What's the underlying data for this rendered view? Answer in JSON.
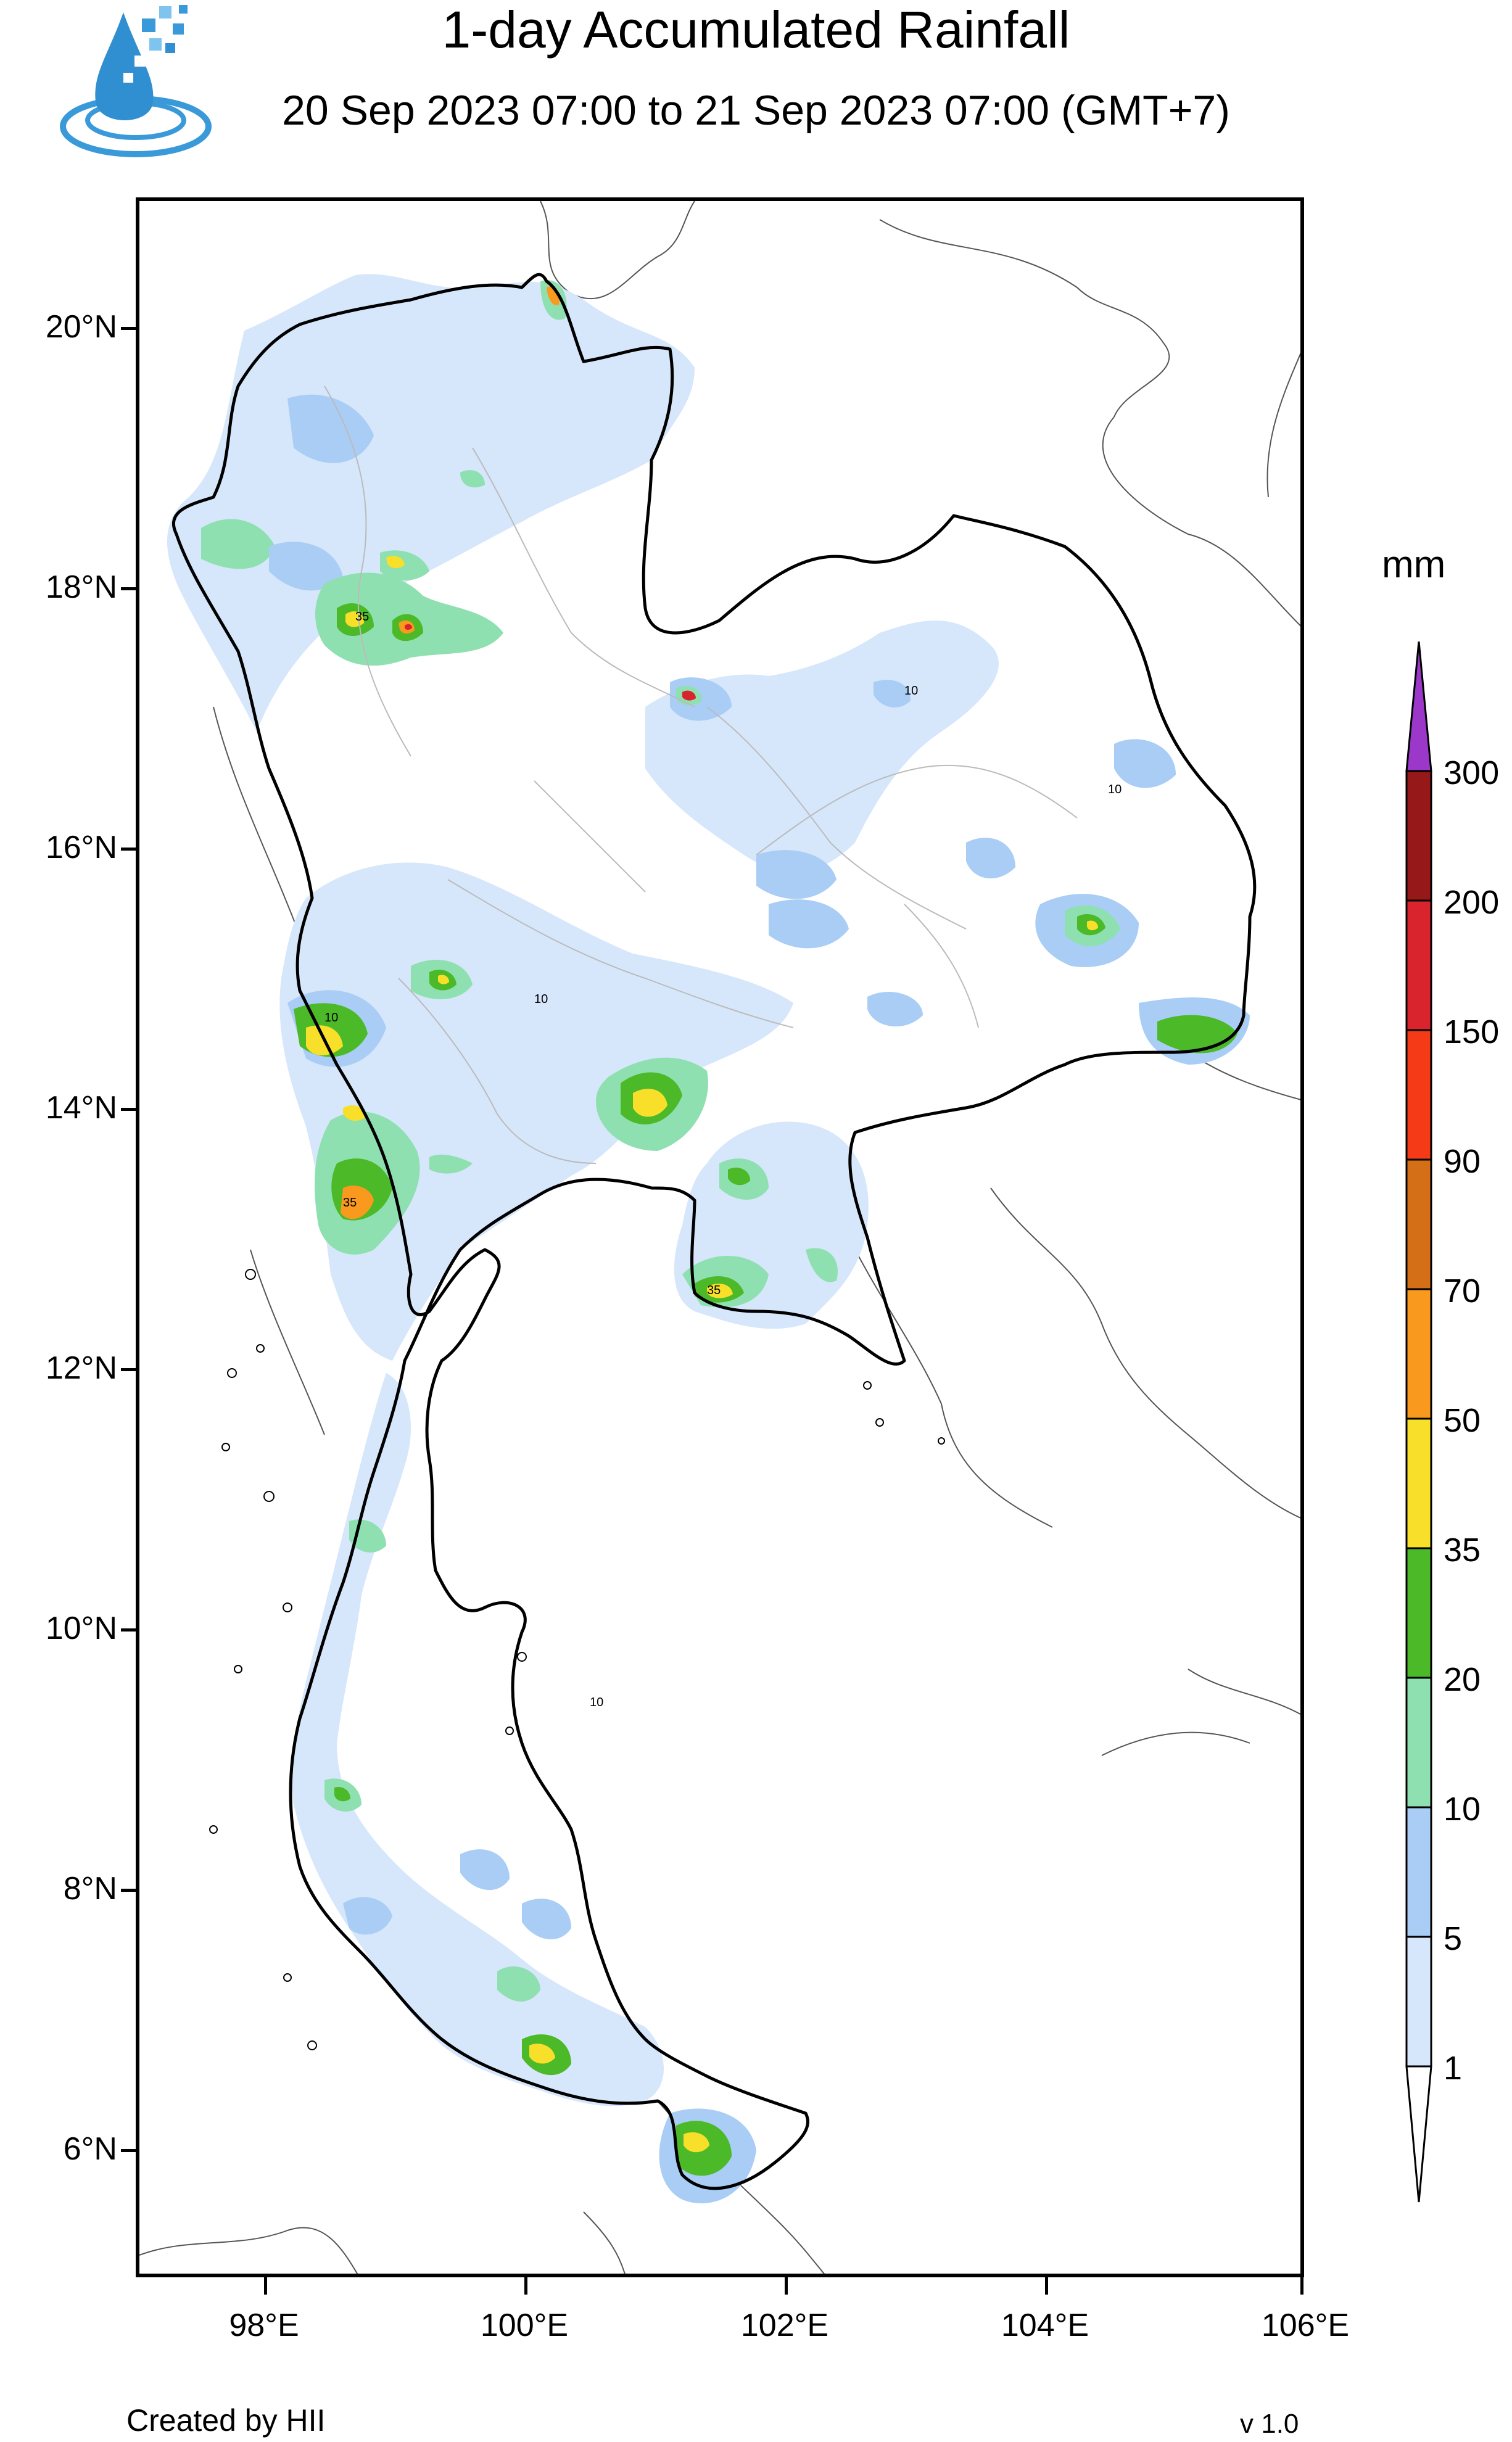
{
  "title": "1-day Accumulated Rainfall",
  "subtitle": "20 Sep 2023 07:00 to 21 Sep 2023 07:00 (GMT+7)",
  "footer": {
    "credit": "Created by HII",
    "version": "v 1.0"
  },
  "legend": {
    "unit": "mm",
    "levels": [
      "1",
      "5",
      "10",
      "20",
      "35",
      "50",
      "70",
      "90",
      "150",
      "200",
      "300"
    ],
    "colors": [
      "#ffffff",
      "#d6e6fb",
      "#a9cdf5",
      "#8fe0b0",
      "#4cb928",
      "#f7df2a",
      "#f99a1e",
      "#d46f18",
      "#f43a17",
      "#d9242e",
      "#961818",
      "#9b37c9"
    ]
  },
  "axes": {
    "lat_labels": [
      "20°N",
      "18°N",
      "16°N",
      "14°N",
      "12°N",
      "10°N",
      "8°N",
      "6°N"
    ],
    "lon_labels": [
      "98°E",
      "100°E",
      "102°E",
      "104°E",
      "106°E"
    ]
  },
  "map_data": {
    "extent": {
      "lon": [
        97.0,
        106.0
      ],
      "lat": [
        5.0,
        21.0
      ]
    },
    "contour_labels": [
      "10",
      "35"
    ]
  }
}
